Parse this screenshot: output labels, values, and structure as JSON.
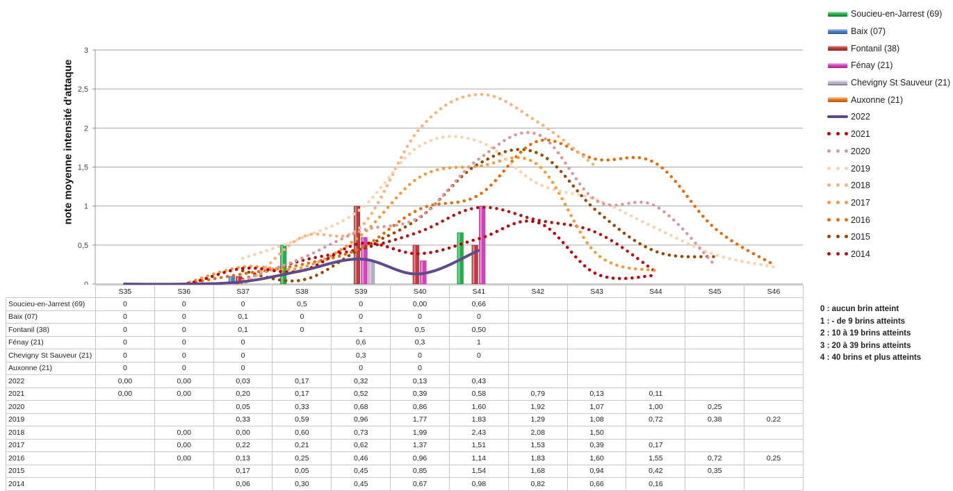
{
  "chart_data": {
    "type": "bar+line",
    "ylabel": "note moyenne intensité d'attaque",
    "ylim": [
      0,
      3
    ],
    "yticks": [
      "0",
      "0,5",
      "1",
      "1,5",
      "2",
      "2,5",
      "3"
    ],
    "categories": [
      "S35",
      "S36",
      "S37",
      "S38",
      "S39",
      "S40",
      "S41",
      "S42",
      "S43",
      "S44",
      "S45",
      "S46"
    ],
    "bar_series": [
      {
        "name": "Soucieu-en-Jarrest (69)",
        "color": "#22b04b",
        "values": [
          0,
          0,
          0,
          0.5,
          0,
          0,
          0.66,
          null,
          null,
          null,
          null,
          null
        ],
        "labels": [
          "0",
          "0",
          "0",
          "0,5",
          "0",
          "0,00",
          "0,66",
          "",
          "",
          "",
          "",
          ""
        ]
      },
      {
        "name": "Baix (07)",
        "color": "#4a7fc8",
        "values": [
          0,
          0,
          0.1,
          0,
          0,
          0,
          0,
          null,
          null,
          null,
          null,
          null
        ],
        "labels": [
          "0",
          "0",
          "0,1",
          "0",
          "0",
          "0",
          "0",
          "",
          "",
          "",
          "",
          ""
        ]
      },
      {
        "name": "Fontanil (38)",
        "color": "#c0393b",
        "values": [
          0,
          0,
          0.1,
          0,
          1,
          0.5,
          0.5,
          null,
          null,
          null,
          null,
          null
        ],
        "labels": [
          "0",
          "0",
          "0,1",
          "0",
          "1",
          "0,5",
          "0,50",
          "",
          "",
          "",
          "",
          ""
        ]
      },
      {
        "name": "Fénay (21)",
        "color": "#d63fbd",
        "values": [
          0,
          0,
          0,
          null,
          0.6,
          0.3,
          1,
          null,
          null,
          null,
          null,
          null
        ],
        "labels": [
          "0",
          "0",
          "0",
          "",
          "0,6",
          "0,3",
          "1",
          "",
          "",
          "",
          "",
          ""
        ]
      },
      {
        "name": "Chevigny St Sauveur (21)",
        "color": "#b8aec8",
        "values": [
          0,
          0,
          0,
          null,
          0.3,
          0,
          0,
          null,
          null,
          null,
          null,
          null
        ],
        "labels": [
          "0",
          "0",
          "0",
          "",
          "0,3",
          "0",
          "0",
          "",
          "",
          "",
          "",
          ""
        ]
      },
      {
        "name": "Auxonne  (21)",
        "color": "#e87a1e",
        "values": [
          0,
          0,
          0,
          null,
          0,
          0,
          null,
          null,
          null,
          null,
          null,
          null
        ],
        "labels": [
          "0",
          "0",
          "0",
          "",
          "0",
          "0",
          "",
          "",
          "",
          "",
          "",
          ""
        ]
      }
    ],
    "line_series": [
      {
        "name": "2022",
        "style": "solid",
        "color": "#604a8a",
        "values": [
          0,
          0,
          0.03,
          0.17,
          0.32,
          0.13,
          0.43,
          null,
          null,
          null,
          null,
          null
        ],
        "labels": [
          "0,00",
          "0,00",
          "0,03",
          "0,17",
          "0,32",
          "0,13",
          "0,43",
          "",
          "",
          "",
          "",
          ""
        ]
      },
      {
        "name": "2021",
        "style": "dotted",
        "color": "#c0000a",
        "values": [
          0,
          0,
          0.2,
          0.17,
          0.52,
          0.39,
          0.58,
          0.79,
          0.13,
          0.11,
          null,
          null
        ],
        "labels": [
          "0,00",
          "0,00",
          "0,20",
          "0,17",
          "0,52",
          "0,39",
          "0,58",
          "0,79",
          "0,13",
          "0,11",
          "",
          ""
        ]
      },
      {
        "name": "2020",
        "style": "dotted",
        "color": "#d9999a",
        "values": [
          null,
          null,
          0.05,
          0.33,
          0.68,
          0.86,
          1.6,
          1.92,
          1.07,
          1.0,
          0.25,
          null
        ],
        "labels": [
          "",
          "",
          "0,05",
          "0,33",
          "0,68",
          "0,86",
          "1,60",
          "1,92",
          "1,07",
          "1,00",
          "0,25",
          ""
        ]
      },
      {
        "name": "2019",
        "style": "dotted",
        "color": "#fbd3ad",
        "values": [
          null,
          null,
          0.33,
          0.59,
          0.96,
          1.77,
          1.83,
          1.29,
          1.08,
          0.72,
          0.38,
          0.22
        ],
        "labels": [
          "",
          "",
          "0,33",
          "0,59",
          "0,96",
          "1,77",
          "1,83",
          "1,29",
          "1,08",
          "0,72",
          "0,38",
          "0,22"
        ]
      },
      {
        "name": "2018",
        "style": "dotted",
        "color": "#f9b37a",
        "values": [
          null,
          0,
          0,
          0.6,
          0.73,
          1.99,
          2.43,
          2.08,
          1.5,
          null,
          null,
          null
        ],
        "labels": [
          "",
          "0,00",
          "0,00",
          "0,60",
          "0,73",
          "1,99",
          "2,43",
          "2,08",
          "1,50",
          "",
          "",
          ""
        ]
      },
      {
        "name": "2017",
        "style": "dotted",
        "color": "#f69a3c",
        "values": [
          null,
          0,
          0.22,
          0.21,
          0.62,
          1.37,
          1.51,
          1.53,
          0.39,
          0.17,
          null,
          null
        ],
        "labels": [
          "",
          "0,00",
          "0,22",
          "0,21",
          "0,62",
          "1,37",
          "1,51",
          "1,53",
          "0,39",
          "0,17",
          "",
          ""
        ]
      },
      {
        "name": "2016",
        "style": "dotted",
        "color": "#e46c0a",
        "values": [
          null,
          0,
          0.13,
          0.25,
          0.46,
          0.96,
          1.14,
          1.83,
          1.6,
          1.55,
          0.72,
          0.25
        ],
        "labels": [
          "",
          "0,00",
          "0,13",
          "0,25",
          "0,46",
          "0,96",
          "1,14",
          "1,83",
          "1,60",
          "1,55",
          "0,72",
          "0,25"
        ]
      },
      {
        "name": "2015",
        "style": "dotted",
        "color": "#974806",
        "values": [
          null,
          null,
          0.17,
          0.05,
          0.45,
          0.85,
          1.54,
          1.68,
          0.94,
          0.42,
          0.35,
          null
        ],
        "labels": [
          "",
          "",
          "0,17",
          "0,05",
          "0,45",
          "0,85",
          "1,54",
          "1,68",
          "0,94",
          "0,42",
          "0,35",
          ""
        ]
      },
      {
        "name": "2014",
        "style": "dotted",
        "color": "#b01515",
        "values": [
          null,
          null,
          0.06,
          0.3,
          0.45,
          0.67,
          0.98,
          0.82,
          0.66,
          0.16,
          null,
          null
        ],
        "labels": [
          "",
          "",
          "0,06",
          "0,30",
          "0,45",
          "0,67",
          "0,98",
          "0,82",
          "0,66",
          "0,16",
          "",
          ""
        ]
      }
    ],
    "legend_position": "right",
    "grid": true
  },
  "key": [
    "0 : aucun brin atteint",
    "1 : - de 9 brins atteints",
    "2 : 10 à 19 brins atteints",
    "3 : 20 à 39 brins atteints",
    "4 : 40 brins et plus atteints"
  ]
}
